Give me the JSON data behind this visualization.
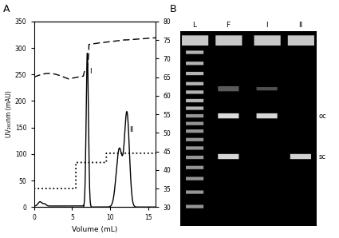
{
  "panel_A": {
    "xlabel": "Volume (mL)",
    "ylabel_left": "UV₂₆₀nm (mAU)",
    "xlim": [
      0,
      16
    ],
    "ylim_left": [
      0,
      350
    ],
    "ylim_right": [
      30,
      80
    ],
    "xticks": [
      0,
      5,
      10,
      15
    ],
    "yticks_left": [
      0,
      50,
      100,
      150,
      200,
      250,
      300,
      350
    ],
    "yticks_right": [
      30,
      35,
      40,
      45,
      50,
      55,
      60,
      65,
      70,
      75,
      80
    ]
  }
}
